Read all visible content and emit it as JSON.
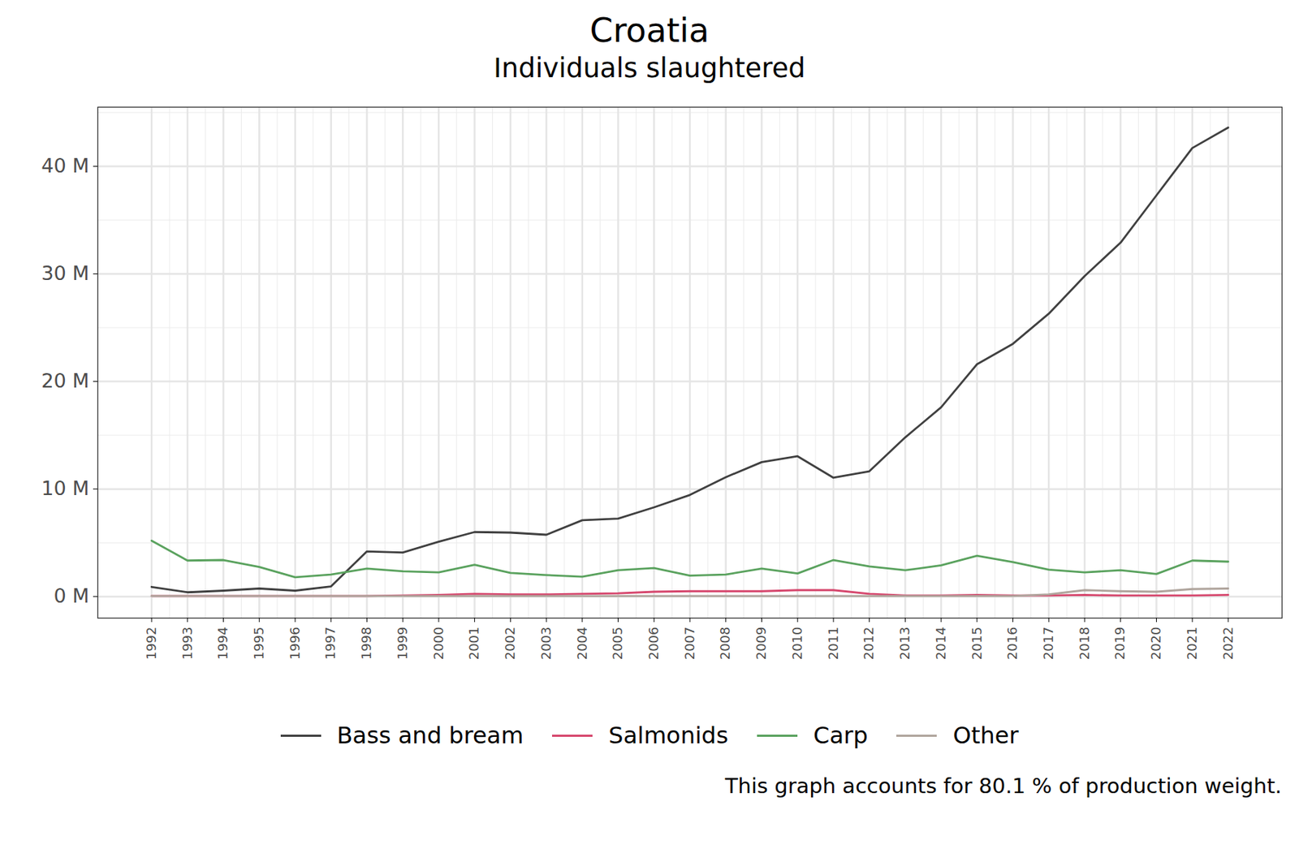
{
  "chart_data": {
    "type": "line",
    "title": "Croatia",
    "subtitle": "Individuals slaughtered",
    "caption": "This graph accounts for 80.1 % of production weight.",
    "x": [
      1992,
      1993,
      1994,
      1995,
      1996,
      1997,
      1998,
      1999,
      2000,
      2001,
      2002,
      2003,
      2004,
      2005,
      2006,
      2007,
      2008,
      2009,
      2010,
      2011,
      2012,
      2013,
      2014,
      2015,
      2016,
      2017,
      2018,
      2019,
      2020,
      2021,
      2022
    ],
    "series": [
      {
        "name": "Bass and bream",
        "color": "#404040",
        "values": [
          0.9,
          0.4,
          0.55,
          0.75,
          0.55,
          0.95,
          4.2,
          4.1,
          5.1,
          6.0,
          5.95,
          5.75,
          7.1,
          7.25,
          8.3,
          9.45,
          11.1,
          12.5,
          13.05,
          11.05,
          11.65,
          14.8,
          17.6,
          21.6,
          23.5,
          26.3,
          29.8,
          32.9,
          37.3,
          41.7,
          43.6
        ]
      },
      {
        "name": "Salmonids",
        "color": "#d6476d",
        "values": [
          0.05,
          0.05,
          0.05,
          0.05,
          0.05,
          0.05,
          0.05,
          0.1,
          0.15,
          0.25,
          0.2,
          0.2,
          0.25,
          0.3,
          0.45,
          0.5,
          0.5,
          0.5,
          0.6,
          0.6,
          0.25,
          0.1,
          0.1,
          0.15,
          0.1,
          0.1,
          0.15,
          0.1,
          0.1,
          0.1,
          0.15
        ]
      },
      {
        "name": "Carp",
        "color": "#5aa25e",
        "values": [
          5.2,
          3.35,
          3.4,
          2.75,
          1.8,
          2.05,
          2.6,
          2.35,
          2.25,
          2.95,
          2.2,
          2.0,
          1.85,
          2.45,
          2.65,
          1.95,
          2.05,
          2.6,
          2.15,
          3.4,
          2.8,
          2.45,
          2.9,
          3.8,
          3.2,
          2.5,
          2.25,
          2.45,
          2.1,
          3.35,
          3.25
        ]
      },
      {
        "name": "Other",
        "color": "#b0a59d",
        "values": [
          0.05,
          0.05,
          0.05,
          0.05,
          0.05,
          0.05,
          0.05,
          0.05,
          0.05,
          0.05,
          0.05,
          0.05,
          0.05,
          0.05,
          0.05,
          0.05,
          0.05,
          0.05,
          0.05,
          0.05,
          0.05,
          0.05,
          0.05,
          0.05,
          0.05,
          0.2,
          0.6,
          0.5,
          0.45,
          0.7,
          0.75
        ]
      }
    ],
    "xlim": [
      1990.5,
      2023.5
    ],
    "xticks": [
      1992,
      1993,
      1994,
      1995,
      1996,
      1997,
      1998,
      1999,
      2000,
      2001,
      2002,
      2003,
      2004,
      2005,
      2006,
      2007,
      2008,
      2009,
      2010,
      2011,
      2012,
      2013,
      2014,
      2015,
      2016,
      2017,
      2018,
      2019,
      2020,
      2021,
      2022
    ],
    "ylim": [
      -2,
      45.5
    ],
    "yticks": [
      {
        "value": 0,
        "label": "0 M"
      },
      {
        "value": 10,
        "label": "10 M"
      },
      {
        "value": 20,
        "label": "20 M"
      },
      {
        "value": 30,
        "label": "30 M"
      },
      {
        "value": 40,
        "label": "40 M"
      }
    ],
    "grid": true,
    "legend": "bottom"
  }
}
